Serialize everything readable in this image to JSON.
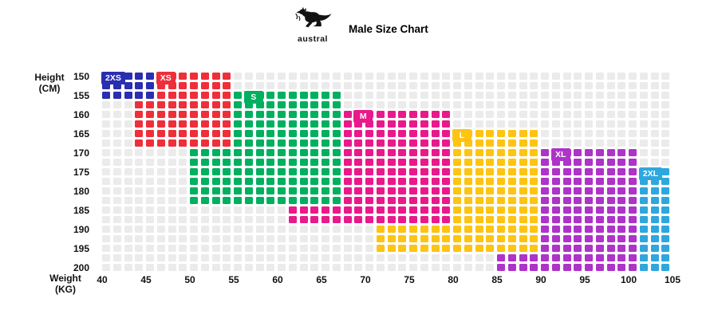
{
  "header": {
    "logo_text": "austral",
    "title": "Male Size Chart"
  },
  "axes": {
    "y_label_line1": "Height",
    "y_label_line2": "(CM)",
    "x_label_line1": "Weight",
    "x_label_line2": "(KG)",
    "y_ticks": [
      150,
      155,
      160,
      165,
      170,
      175,
      180,
      185,
      190,
      195,
      200
    ],
    "x_ticks": [
      40,
      45,
      50,
      55,
      60,
      65,
      70,
      75,
      80,
      85,
      90,
      95,
      100,
      105
    ]
  },
  "grid": {
    "cols": 52,
    "rows": 21,
    "weight_min": 40,
    "weight_step": 1.25,
    "height_min": 150,
    "height_step": 2.5,
    "empty_color": "#ebebeb"
  },
  "chart_data": {
    "type": "heatmap",
    "title": "Male Size Chart",
    "xlabel": "Weight (KG)",
    "ylabel": "Height (CM)",
    "x_range": [
      40,
      105
    ],
    "y_range": [
      150,
      202.5
    ],
    "legend_position": "in-chart-labels",
    "grid": true,
    "sizes": [
      {
        "label": "2XS",
        "color": "#2a2eb0",
        "weight_range": [
          40,
          46.25
        ],
        "height_range": [
          150,
          157.5
        ],
        "label_at": [
          40,
          150
        ]
      },
      {
        "label": "XS",
        "color": "#ee2f3a",
        "weight_range": [
          43.75,
          55
        ],
        "height_range": [
          150,
          170
        ],
        "label_at": [
          46.25,
          150
        ]
      },
      {
        "label": "S",
        "color": "#00b05f",
        "weight_range": [
          50,
          67.5
        ],
        "height_range": [
          155,
          185
        ],
        "label_at": [
          56.25,
          155
        ]
      },
      {
        "label": "M",
        "color": "#e9198c",
        "weight_range": [
          61.25,
          80
        ],
        "height_range": [
          160,
          190
        ],
        "label_at": [
          68.75,
          160
        ]
      },
      {
        "label": "L",
        "color": "#fdc413",
        "weight_range": [
          71.25,
          90
        ],
        "height_range": [
          165,
          197.5
        ],
        "label_at": [
          80,
          165
        ]
      },
      {
        "label": "XL",
        "color": "#ae33c9",
        "weight_range": [
          85,
          101.25
        ],
        "height_range": [
          170,
          202.5
        ],
        "label_at": [
          91.25,
          170
        ]
      },
      {
        "label": "2XL",
        "color": "#2ea7de",
        "weight_range": [
          92.5,
          105
        ],
        "height_range": [
          175,
          202.5
        ],
        "label_at": [
          101.25,
          175
        ]
      }
    ]
  }
}
